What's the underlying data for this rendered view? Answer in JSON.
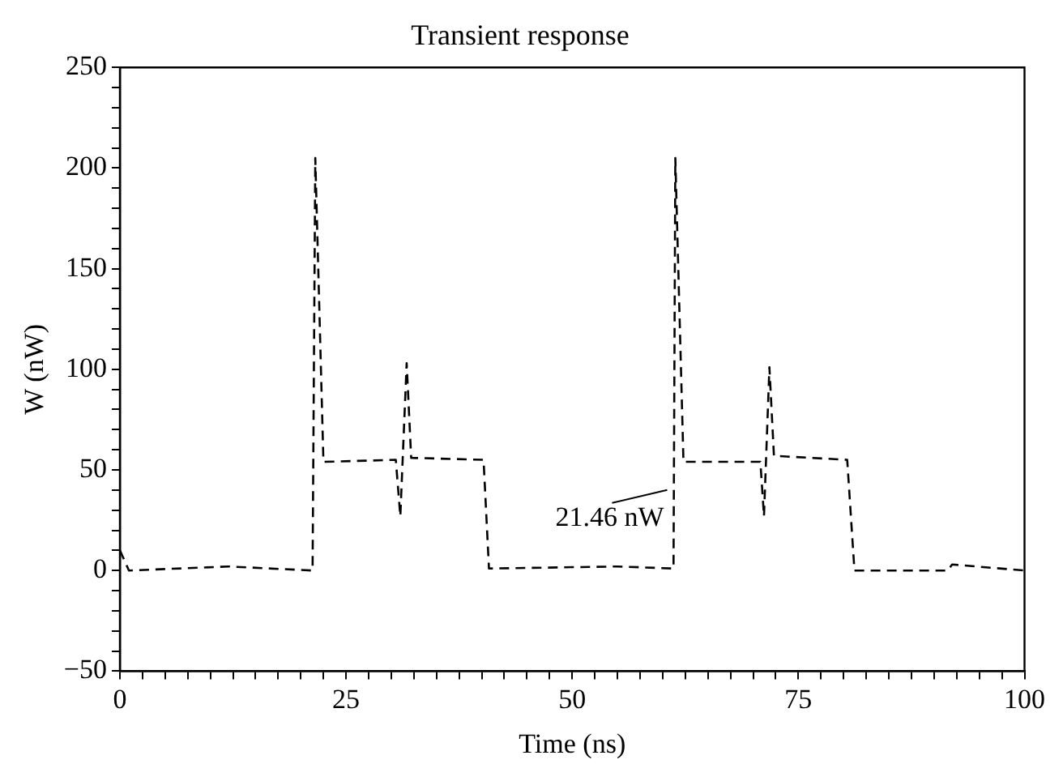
{
  "chart_data": {
    "type": "line",
    "title": "Transient response",
    "xlabel": "Time (ns)",
    "ylabel": "W (nW)",
    "x": [
      0,
      1,
      12,
      21.3,
      21.6,
      22.5,
      30.5,
      31,
      31.7,
      32.2,
      40.2,
      40.8,
      55,
      61.2,
      61.4,
      62.3,
      70.8,
      71.2,
      71.8,
      72.3,
      80.4,
      81.2,
      91.5,
      92,
      100
    ],
    "series": [
      {
        "color": "#000000",
        "values": [
          10,
          0,
          2,
          0,
          205,
          54,
          55,
          27,
          103,
          56,
          55,
          1,
          2,
          1,
          205,
          54,
          54,
          27,
          101,
          57,
          55,
          0,
          0,
          3,
          0
        ]
      }
    ],
    "annotations": [
      {
        "text": "21.46 nW",
        "x": 60.5,
        "y": 40
      }
    ],
    "xlim": [
      0,
      100
    ],
    "xticks": [
      0,
      {
        "value": 2.5,
        "label": null
      },
      {
        "value": 5,
        "label": null
      },
      {
        "value": 7.5,
        "label": null
      },
      {
        "value": 10,
        "label": null
      },
      {
        "value": 12.5,
        "label": null
      },
      {
        "value": 15,
        "label": null
      },
      {
        "value": 17.5,
        "label": null
      },
      {
        "value": 20,
        "label": null
      },
      {
        "value": 22.5,
        "label": null
      },
      25,
      {
        "value": 27.5,
        "label": null
      },
      {
        "value": 30,
        "label": null
      },
      {
        "value": 32.5,
        "label": null
      },
      {
        "value": 35,
        "label": null
      },
      {
        "value": 37.5,
        "label": null
      },
      {
        "value": 40,
        "label": null
      },
      {
        "value": 42.5,
        "label": null
      },
      {
        "value": 45,
        "label": null
      },
      {
        "value": 47.5,
        "label": null
      },
      50,
      {
        "value": 52.5,
        "label": null
      },
      {
        "value": 55,
        "label": null
      },
      {
        "value": 57.5,
        "label": null
      },
      {
        "value": 60,
        "label": null
      },
      {
        "value": 62.5,
        "label": null
      },
      {
        "value": 65,
        "label": null
      },
      {
        "value": 67.5,
        "label": null
      },
      {
        "value": 70,
        "label": null
      },
      {
        "value": 72.5,
        "label": null
      },
      75,
      {
        "value": 77.5,
        "label": null
      },
      {
        "value": 80,
        "label": null
      },
      {
        "value": 82.5,
        "label": null
      },
      {
        "value": 85,
        "label": null
      },
      {
        "value": 87.5,
        "label": null
      },
      {
        "value": 90,
        "label": null
      },
      {
        "value": 92.5,
        "label": null
      },
      {
        "value": 95,
        "label": null
      },
      {
        "value": 97.5,
        "label": null
      },
      100
    ],
    "ylim": [
      -50,
      250
    ],
    "yticks": [
      -50,
      {
        "value": -40,
        "label": null
      },
      {
        "value": -30,
        "label": null
      },
      {
        "value": -20,
        "label": null
      },
      {
        "value": -10,
        "label": null
      },
      0,
      {
        "value": 10,
        "label": null
      },
      {
        "value": 20,
        "label": null
      },
      {
        "value": 30,
        "label": null
      },
      {
        "value": 40,
        "label": null
      },
      50,
      {
        "value": 60,
        "label": null
      },
      {
        "value": 70,
        "label": null
      },
      {
        "value": 80,
        "label": null
      },
      {
        "value": 90,
        "label": null
      },
      100,
      {
        "value": 110,
        "label": null
      },
      {
        "value": 120,
        "label": null
      },
      {
        "value": 130,
        "label": null
      },
      {
        "value": 140,
        "label": null
      },
      150,
      {
        "value": 160,
        "label": null
      },
      {
        "value": 170,
        "label": null
      },
      {
        "value": 180,
        "label": null
      },
      {
        "value": 190,
        "label": null
      },
      200,
      {
        "value": 210,
        "label": null
      },
      {
        "value": 220,
        "label": null
      },
      {
        "value": 230,
        "label": null
      },
      {
        "value": 240,
        "label": null
      },
      250
    ],
    "line_style": "dashed",
    "marker": "none",
    "grid": false,
    "legend": false
  }
}
